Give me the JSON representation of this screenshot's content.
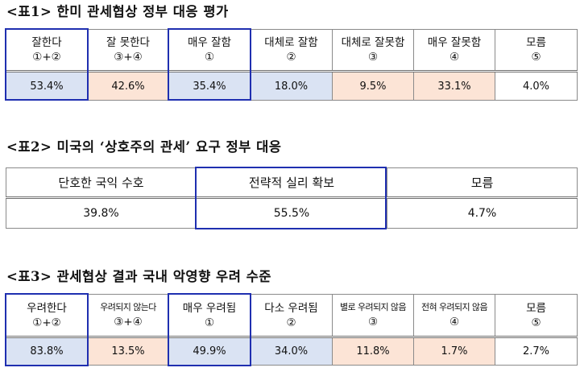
{
  "table1": {
    "title": "<표1> 한미 관세협상 정부 대응 평가",
    "headers": [
      {
        "label": "잘한다",
        "sub": "①+②"
      },
      {
        "label": "잘 못한다",
        "sub": "③+④"
      },
      {
        "label": "매우 잘함",
        "sub": "①"
      },
      {
        "label": "대체로 잘함",
        "sub": "②"
      },
      {
        "label": "대체로 잘못함",
        "sub": "③"
      },
      {
        "label": "매우 잘못함",
        "sub": "④"
      },
      {
        "label": "모름",
        "sub": "⑤"
      }
    ],
    "values": [
      "53.4%",
      "42.6%",
      "35.4%",
      "18.0%",
      "9.5%",
      "33.1%",
      "4.0%"
    ]
  },
  "table2": {
    "title": "<표2> 미국의 ‘상호주의 관세’ 요구 정부 대응",
    "headers": [
      "단호한 국익 수호",
      "전략적 실리 확보",
      "모름"
    ],
    "values": [
      "39.8%",
      "55.5%",
      "4.7%"
    ]
  },
  "table3": {
    "title": "<표3> 관세협상 결과 국내 악영향 우려 수준",
    "headers": [
      {
        "label": "우려한다",
        "sub": "①+②"
      },
      {
        "label": "우려되지 않는다",
        "sub": "③+④"
      },
      {
        "label": "매우 우려됨",
        "sub": "①"
      },
      {
        "label": "다소 우려됨",
        "sub": "②"
      },
      {
        "label": "별로 우려되지 않음",
        "sub": "③"
      },
      {
        "label": "전혀 우려되지 않음",
        "sub": "④"
      },
      {
        "label": "모름",
        "sub": "⑤"
      }
    ],
    "values": [
      "83.8%",
      "13.5%",
      "49.9%",
      "34.0%",
      "11.8%",
      "1.7%",
      "2.7%"
    ]
  },
  "colors": {
    "highlight_box": "#1f2fb0",
    "positive_fill": "#dae3f3",
    "negative_fill": "#fce4d6"
  }
}
